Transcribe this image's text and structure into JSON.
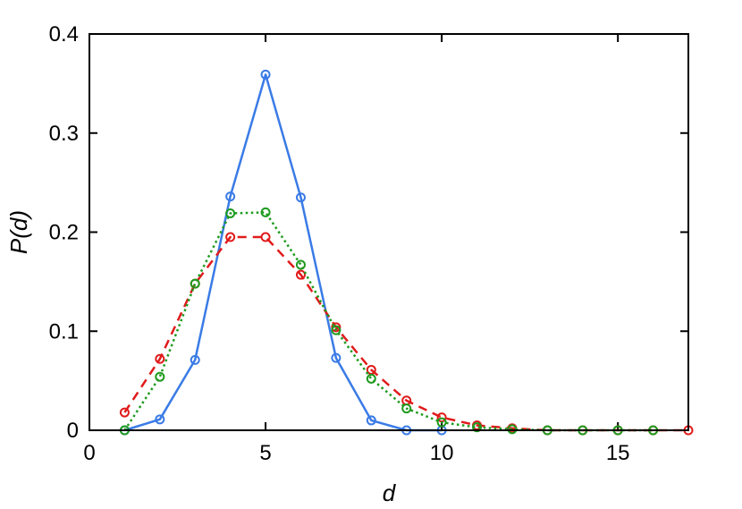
{
  "chart_data": {
    "type": "line",
    "title": "",
    "xlabel": "d",
    "ylabel": "P(d)",
    "xlim": [
      0,
      17
    ],
    "ylim": [
      0,
      0.4
    ],
    "xticks": [
      0,
      5,
      10,
      15
    ],
    "yticks": [
      0,
      0.1,
      0.2,
      0.3,
      0.4
    ],
    "xtick_labels": [
      "0",
      "5",
      "10",
      "15"
    ],
    "ytick_labels": [
      "0",
      "0.1",
      "0.2",
      "0.3",
      "0.4"
    ],
    "grid": false,
    "legend": "none",
    "series": [
      {
        "style": "solid",
        "color": "#3a7be6",
        "x": [
          1,
          2,
          3,
          4,
          5,
          6,
          7,
          8,
          9,
          10
        ],
        "y": [
          0.0,
          0.011,
          0.071,
          0.236,
          0.359,
          0.235,
          0.073,
          0.01,
          0.0,
          0.0
        ]
      },
      {
        "style": "dashed",
        "color": "#e01b1b",
        "x": [
          1,
          2,
          3,
          4,
          5,
          6,
          7,
          8,
          9,
          10,
          11,
          12,
          13,
          14,
          15,
          16,
          17
        ],
        "y": [
          0.018,
          0.072,
          0.148,
          0.195,
          0.195,
          0.157,
          0.104,
          0.061,
          0.03,
          0.013,
          0.005,
          0.002,
          0.0,
          0.0,
          0.0,
          0.0,
          0.0
        ]
      },
      {
        "style": "dotted",
        "color": "#1e9a1e",
        "x": [
          1,
          2,
          3,
          4,
          5,
          6,
          7,
          8,
          9,
          10,
          11,
          12,
          13,
          14,
          15,
          16
        ],
        "y": [
          0.0,
          0.054,
          0.148,
          0.219,
          0.22,
          0.167,
          0.101,
          0.052,
          0.022,
          0.008,
          0.003,
          0.001,
          0.0,
          0.0,
          0.0,
          0.0
        ]
      }
    ]
  }
}
